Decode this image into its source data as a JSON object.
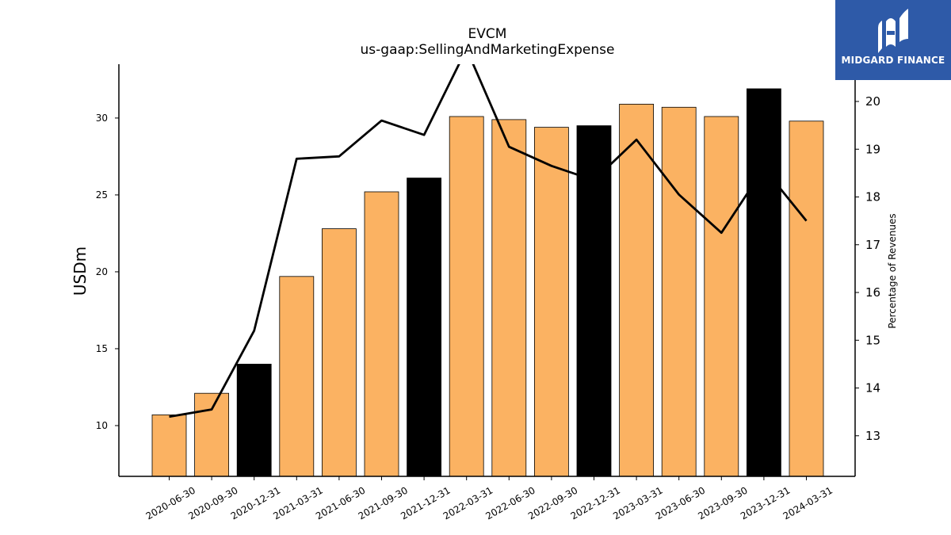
{
  "logo": {
    "brand": "MIDGARD FINANCE"
  },
  "chart_data": {
    "type": "bar",
    "title": "EVCM",
    "subtitle": "us-gaap:SellingAndMarketingExpense",
    "ylabel": "USDm",
    "ylabel_right": "Percentage of Revenues",
    "categories": [
      "2020-06-30",
      "2020-09-30",
      "2020-12-31",
      "2021-03-31",
      "2021-06-30",
      "2021-09-30",
      "2021-12-31",
      "2022-03-31",
      "2022-06-30",
      "2022-09-30",
      "2022-12-31",
      "2023-03-31",
      "2023-06-30",
      "2023-09-30",
      "2023-12-31",
      "2024-03-31"
    ],
    "series": [
      {
        "type": "bar",
        "axis": "left",
        "values": [
          10.7,
          12.1,
          14.0,
          19.7,
          22.8,
          25.2,
          26.1,
          30.1,
          29.9,
          29.4,
          29.5,
          30.9,
          30.7,
          30.1,
          31.9,
          29.8
        ],
        "colors": [
          "#fbb262",
          "#fbb262",
          "#000000",
          "#fbb262",
          "#fbb262",
          "#fbb262",
          "#000000",
          "#fbb262",
          "#fbb262",
          "#fbb262",
          "#000000",
          "#fbb262",
          "#fbb262",
          "#fbb262",
          "#000000",
          "#fbb262"
        ]
      },
      {
        "type": "line",
        "axis": "right",
        "color": "#000000",
        "values": [
          13.4,
          13.55,
          15.2,
          18.8,
          18.85,
          19.6,
          19.3,
          21.1,
          19.05,
          18.65,
          18.35,
          19.2,
          18.05,
          17.25,
          18.6,
          17.5
        ]
      }
    ],
    "ylim": [
      6.7,
      33.5
    ],
    "y2lim": [
      12.15,
      20.78
    ],
    "yticks": [
      10,
      15,
      20,
      25,
      30
    ],
    "y2ticks": [
      13,
      14,
      15,
      16,
      17,
      18,
      19,
      20
    ],
    "grid": false,
    "legend": "none"
  }
}
